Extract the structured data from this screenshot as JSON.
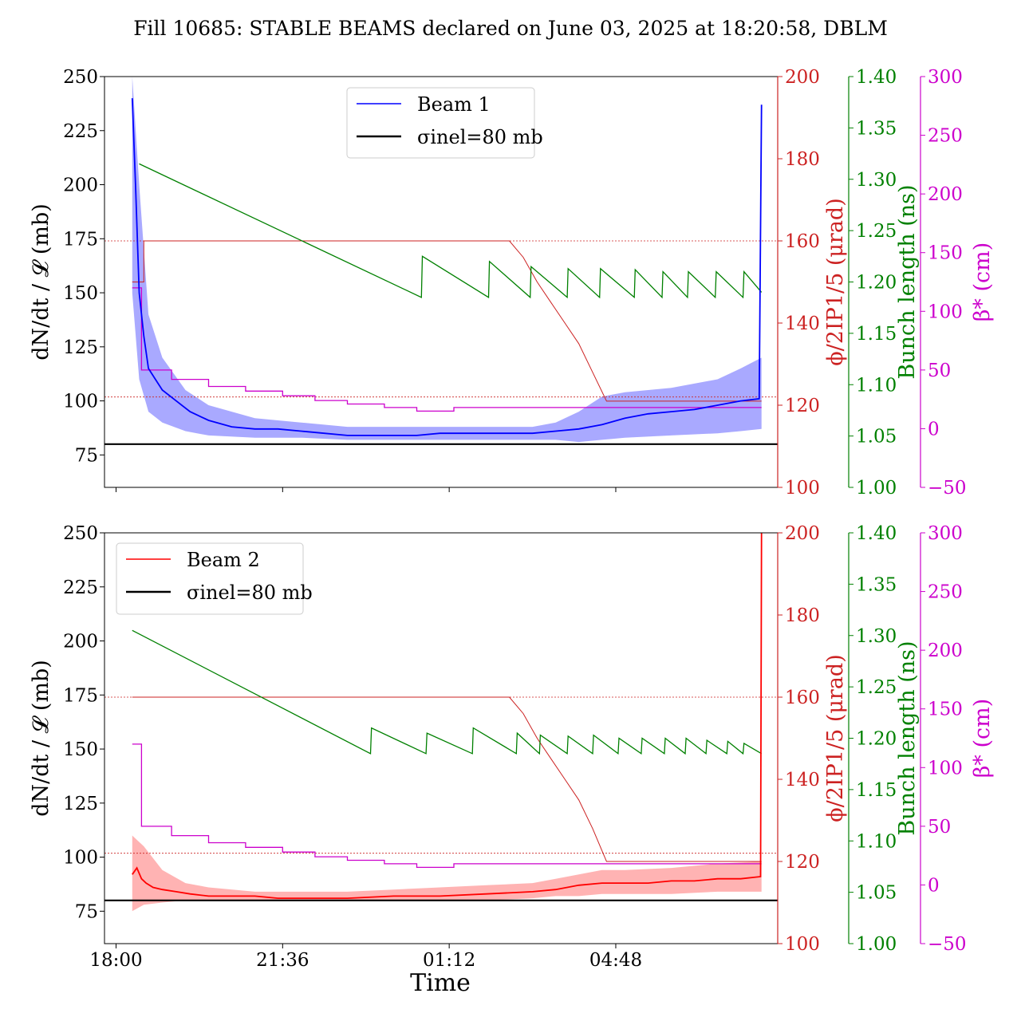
{
  "figure": {
    "title": "Fill 10685: STABLE BEAMS declared on June 03, 2025 at 18:20:58, DBLM",
    "xlabel": "Time"
  },
  "colors": {
    "beam1": "#0000ff",
    "beam1_band": "#8c8cff",
    "beam2": "#ff0000",
    "beam2_band": "#ff9a9a",
    "crossing_angle": "#cc2222",
    "bunch_length": "#008000",
    "beta_star": "#cc00cc",
    "reference": "#000000"
  },
  "axes_labels": {
    "left": "dN/dt / 𝓛 (mb)",
    "right1": "ϕ/2IP1/5 (μrad)",
    "right2": "Bunch length (ns)",
    "right3": "β* (cm)"
  },
  "chart_data": [
    {
      "type": "line",
      "panel": "top",
      "xlabel": "",
      "x_ticks": [
        "18:00",
        "21:36",
        "01:12",
        "04:48"
      ],
      "x_range_hours": [
        17.75,
        32.3
      ],
      "ylim": [
        60,
        250
      ],
      "y_ticks": [
        75,
        100,
        125,
        150,
        175,
        200,
        225,
        250
      ],
      "axis_phi": {
        "label": "ϕ/2IP1/5 (μrad)",
        "ylim": [
          100,
          200
        ],
        "ticks": [
          100,
          120,
          140,
          160,
          180,
          200
        ]
      },
      "axis_bunch": {
        "label": "Bunch length (ns)",
        "ylim": [
          1.0,
          1.4
        ],
        "ticks": [
          "1.00",
          "1.05",
          "1.10",
          "1.15",
          "1.20",
          "1.25",
          "1.30",
          "1.35",
          "1.40"
        ]
      },
      "axis_beta": {
        "label": "β* (cm)",
        "ylim": [
          -50,
          300
        ],
        "ticks": [
          -50,
          0,
          50,
          100,
          150,
          200,
          250,
          300
        ]
      },
      "legend": {
        "position": "top-center",
        "entries": [
          "Beam 1",
          "σinel=80 mb"
        ]
      },
      "series": [
        {
          "name": "Beam 1",
          "axis": "left",
          "x": [
            18.35,
            18.42,
            18.5,
            18.6,
            18.7,
            18.85,
            19.0,
            19.3,
            19.6,
            20.0,
            20.5,
            21.0,
            21.5,
            22.0,
            22.5,
            23.0,
            23.5,
            24.0,
            24.5,
            25.0,
            25.5,
            26.0,
            26.5,
            27.0,
            27.5,
            28.0,
            28.5,
            29.0,
            29.5,
            30.0,
            30.5,
            31.0,
            31.5,
            31.9,
            31.95
          ],
          "y": [
            240,
            200,
            150,
            130,
            115,
            110,
            105,
            100,
            95,
            91,
            88,
            87,
            87,
            86,
            85,
            84,
            84,
            84,
            84,
            85,
            85,
            85,
            85,
            85,
            86,
            87,
            89,
            92,
            94,
            95,
            96,
            98,
            100,
            101,
            237
          ]
        },
        {
          "name": "Beam 1 band upper",
          "axis": "left",
          "x": [
            18.35,
            18.5,
            18.7,
            19.0,
            19.5,
            20.0,
            21.0,
            22.0,
            23.0,
            24.0,
            25.0,
            26.0,
            27.0,
            27.5,
            28.0,
            28.5,
            29.0,
            30.0,
            31.0,
            31.5,
            31.95
          ],
          "y": [
            250,
            200,
            140,
            120,
            105,
            98,
            92,
            90,
            88,
            88,
            88,
            88,
            88,
            90,
            95,
            102,
            104,
            106,
            110,
            115,
            120
          ]
        },
        {
          "name": "Beam 1 band lower",
          "axis": "left",
          "x": [
            18.35,
            18.5,
            18.7,
            19.0,
            19.5,
            20.0,
            21.0,
            22.0,
            23.0,
            24.0,
            25.0,
            26.0,
            27.0,
            27.5,
            28.0,
            28.5,
            29.0,
            30.0,
            31.0,
            31.5,
            31.95
          ],
          "y": [
            150,
            110,
            95,
            90,
            86,
            84,
            83,
            83,
            82,
            82,
            82,
            82,
            82,
            82,
            81,
            82,
            83,
            84,
            85,
            86,
            87
          ]
        },
        {
          "name": "σinel=80 mb",
          "axis": "left",
          "x": [
            17.75,
            32.3
          ],
          "y": [
            80,
            80
          ]
        },
        {
          "name": "Crossing angle",
          "axis": "phi",
          "x": [
            18.35,
            18.6,
            18.6,
            20.0,
            20.0,
            26.5,
            26.8,
            27.1,
            27.4,
            27.7,
            28.0,
            28.3,
            28.6,
            31.95
          ],
          "y": [
            150,
            150,
            160,
            160,
            160,
            160,
            156,
            150,
            145,
            140,
            135,
            128,
            121,
            121
          ]
        },
        {
          "name": "Crossing angle reference 160",
          "axis": "phi",
          "x": [
            17.75,
            32.3
          ],
          "y": [
            160,
            160
          ]
        },
        {
          "name": "Crossing angle reference 122",
          "axis": "phi",
          "x": [
            17.75,
            32.3
          ],
          "y": [
            122,
            122
          ]
        },
        {
          "name": "Bunch length",
          "axis": "bunch",
          "x": [
            18.5,
            24.6,
            24.62,
            26.05,
            26.07,
            26.95,
            26.97,
            27.75,
            27.77,
            28.45,
            28.47,
            29.2,
            29.22,
            29.8,
            29.82,
            30.35,
            30.37,
            30.95,
            30.97,
            31.55,
            31.57,
            31.95
          ],
          "y": [
            1.315,
            1.185,
            1.225,
            1.185,
            1.22,
            1.185,
            1.215,
            1.185,
            1.213,
            1.185,
            1.213,
            1.185,
            1.212,
            1.185,
            1.21,
            1.185,
            1.21,
            1.185,
            1.21,
            1.185,
            1.21,
            1.19
          ]
        },
        {
          "name": "β*",
          "axis": "beta",
          "x": [
            18.35,
            18.55,
            18.55,
            19.2,
            19.2,
            20.0,
            20.0,
            20.8,
            20.8,
            21.6,
            21.6,
            22.3,
            22.3,
            23.0,
            23.0,
            23.8,
            23.8,
            24.5,
            24.5,
            25.3,
            25.3,
            28.5,
            28.5,
            31.95
          ],
          "y": [
            120,
            120,
            50,
            50,
            42,
            42,
            36,
            36,
            32,
            32,
            28,
            28,
            24,
            24,
            21,
            21,
            18,
            18,
            15,
            15,
            18,
            18,
            18,
            18
          ]
        }
      ]
    },
    {
      "type": "line",
      "panel": "bottom",
      "xlabel": "Time",
      "x_ticks": [
        "18:00",
        "21:36",
        "01:12",
        "04:48"
      ],
      "x_range_hours": [
        17.75,
        32.3
      ],
      "ylim": [
        60,
        250
      ],
      "y_ticks": [
        75,
        100,
        125,
        150,
        175,
        200,
        225,
        250
      ],
      "axis_phi": {
        "label": "ϕ/2IP1/5 (μrad)",
        "ylim": [
          100,
          200
        ],
        "ticks": [
          100,
          120,
          140,
          160,
          180,
          200
        ]
      },
      "axis_bunch": {
        "label": "Bunch length (ns)",
        "ylim": [
          1.0,
          1.4
        ],
        "ticks": [
          "1.00",
          "1.05",
          "1.10",
          "1.15",
          "1.20",
          "1.25",
          "1.30",
          "1.35",
          "1.40"
        ]
      },
      "axis_beta": {
        "label": "β* (cm)",
        "ylim": [
          -50,
          300
        ],
        "ticks": [
          -50,
          0,
          50,
          100,
          150,
          200,
          250,
          300
        ]
      },
      "legend": {
        "position": "top-left",
        "entries": [
          "Beam 2",
          "σinel=80 mb"
        ]
      },
      "series": [
        {
          "name": "Beam 2",
          "axis": "left",
          "x": [
            18.35,
            18.45,
            18.55,
            18.65,
            18.8,
            19.0,
            19.3,
            19.6,
            20.0,
            20.5,
            21.0,
            21.5,
            22.0,
            23.0,
            24.0,
            25.0,
            26.0,
            27.0,
            27.5,
            28.0,
            28.5,
            29.0,
            29.5,
            30.0,
            30.5,
            31.0,
            31.5,
            31.93,
            31.95
          ],
          "y": [
            92,
            95,
            90,
            88,
            86,
            85,
            84,
            83,
            82,
            82,
            82,
            81,
            81,
            81,
            82,
            82,
            83,
            84,
            85,
            87,
            88,
            88,
            88,
            89,
            89,
            90,
            90,
            91,
            250
          ]
        },
        {
          "name": "Beam 2 band upper",
          "axis": "left",
          "x": [
            18.35,
            18.6,
            19.0,
            19.5,
            20.0,
            21.0,
            22.0,
            23.0,
            24.0,
            25.0,
            26.0,
            27.0,
            27.5,
            28.0,
            28.5,
            29.0,
            30.0,
            31.0,
            31.95
          ],
          "y": [
            110,
            105,
            94,
            88,
            86,
            84,
            84,
            84,
            85,
            86,
            87,
            88,
            90,
            92,
            94,
            94,
            95,
            97,
            98
          ]
        },
        {
          "name": "Beam 2 band lower",
          "axis": "left",
          "x": [
            18.35,
            18.6,
            19.0,
            19.5,
            20.0,
            21.0,
            22.0,
            23.0,
            24.0,
            25.0,
            26.0,
            27.0,
            27.5,
            28.0,
            28.5,
            29.0,
            30.0,
            31.0,
            31.95
          ],
          "y": [
            75,
            78,
            79,
            80,
            80,
            80,
            80,
            80,
            80,
            80,
            80,
            81,
            82,
            82,
            83,
            83,
            83,
            84,
            84
          ]
        },
        {
          "name": "σinel=80 mb",
          "axis": "left",
          "x": [
            17.75,
            32.3
          ],
          "y": [
            80,
            80
          ]
        },
        {
          "name": "Crossing angle",
          "axis": "phi",
          "x": [
            18.35,
            26.5,
            26.8,
            27.1,
            27.4,
            27.7,
            28.0,
            28.3,
            28.6,
            31.95
          ],
          "y": [
            160,
            160,
            156,
            150,
            145,
            140,
            135,
            128,
            120,
            120
          ]
        },
        {
          "name": "Crossing angle reference 160",
          "axis": "phi",
          "x": [
            17.75,
            32.3
          ],
          "y": [
            160,
            160
          ]
        },
        {
          "name": "Crossing angle reference 122",
          "axis": "phi",
          "x": [
            17.75,
            32.3
          ],
          "y": [
            122,
            122
          ]
        },
        {
          "name": "Bunch length",
          "axis": "bunch",
          "x": [
            18.35,
            23.5,
            23.52,
            24.7,
            24.72,
            25.7,
            25.72,
            26.65,
            26.67,
            27.15,
            27.17,
            27.75,
            27.77,
            28.3,
            28.32,
            28.85,
            28.87,
            29.35,
            29.37,
            29.85,
            29.87,
            30.3,
            30.32,
            30.75,
            30.77,
            31.2,
            31.22,
            31.55,
            31.57,
            31.95
          ],
          "y": [
            1.305,
            1.185,
            1.21,
            1.185,
            1.205,
            1.185,
            1.21,
            1.185,
            1.205,
            1.185,
            1.203,
            1.185,
            1.202,
            1.185,
            1.203,
            1.185,
            1.2,
            1.185,
            1.2,
            1.185,
            1.2,
            1.185,
            1.2,
            1.185,
            1.198,
            1.185,
            1.197,
            1.185,
            1.195,
            1.185
          ]
        },
        {
          "name": "β*",
          "axis": "beta",
          "x": [
            18.35,
            18.55,
            18.55,
            19.2,
            19.2,
            20.0,
            20.0,
            20.8,
            20.8,
            21.6,
            21.6,
            22.3,
            22.3,
            23.0,
            23.0,
            23.8,
            23.8,
            24.5,
            24.5,
            25.3,
            25.3,
            31.95
          ],
          "y": [
            120,
            120,
            50,
            50,
            42,
            42,
            36,
            36,
            32,
            32,
            28,
            28,
            24,
            24,
            21,
            21,
            18,
            18,
            15,
            15,
            18,
            18
          ]
        }
      ]
    }
  ]
}
